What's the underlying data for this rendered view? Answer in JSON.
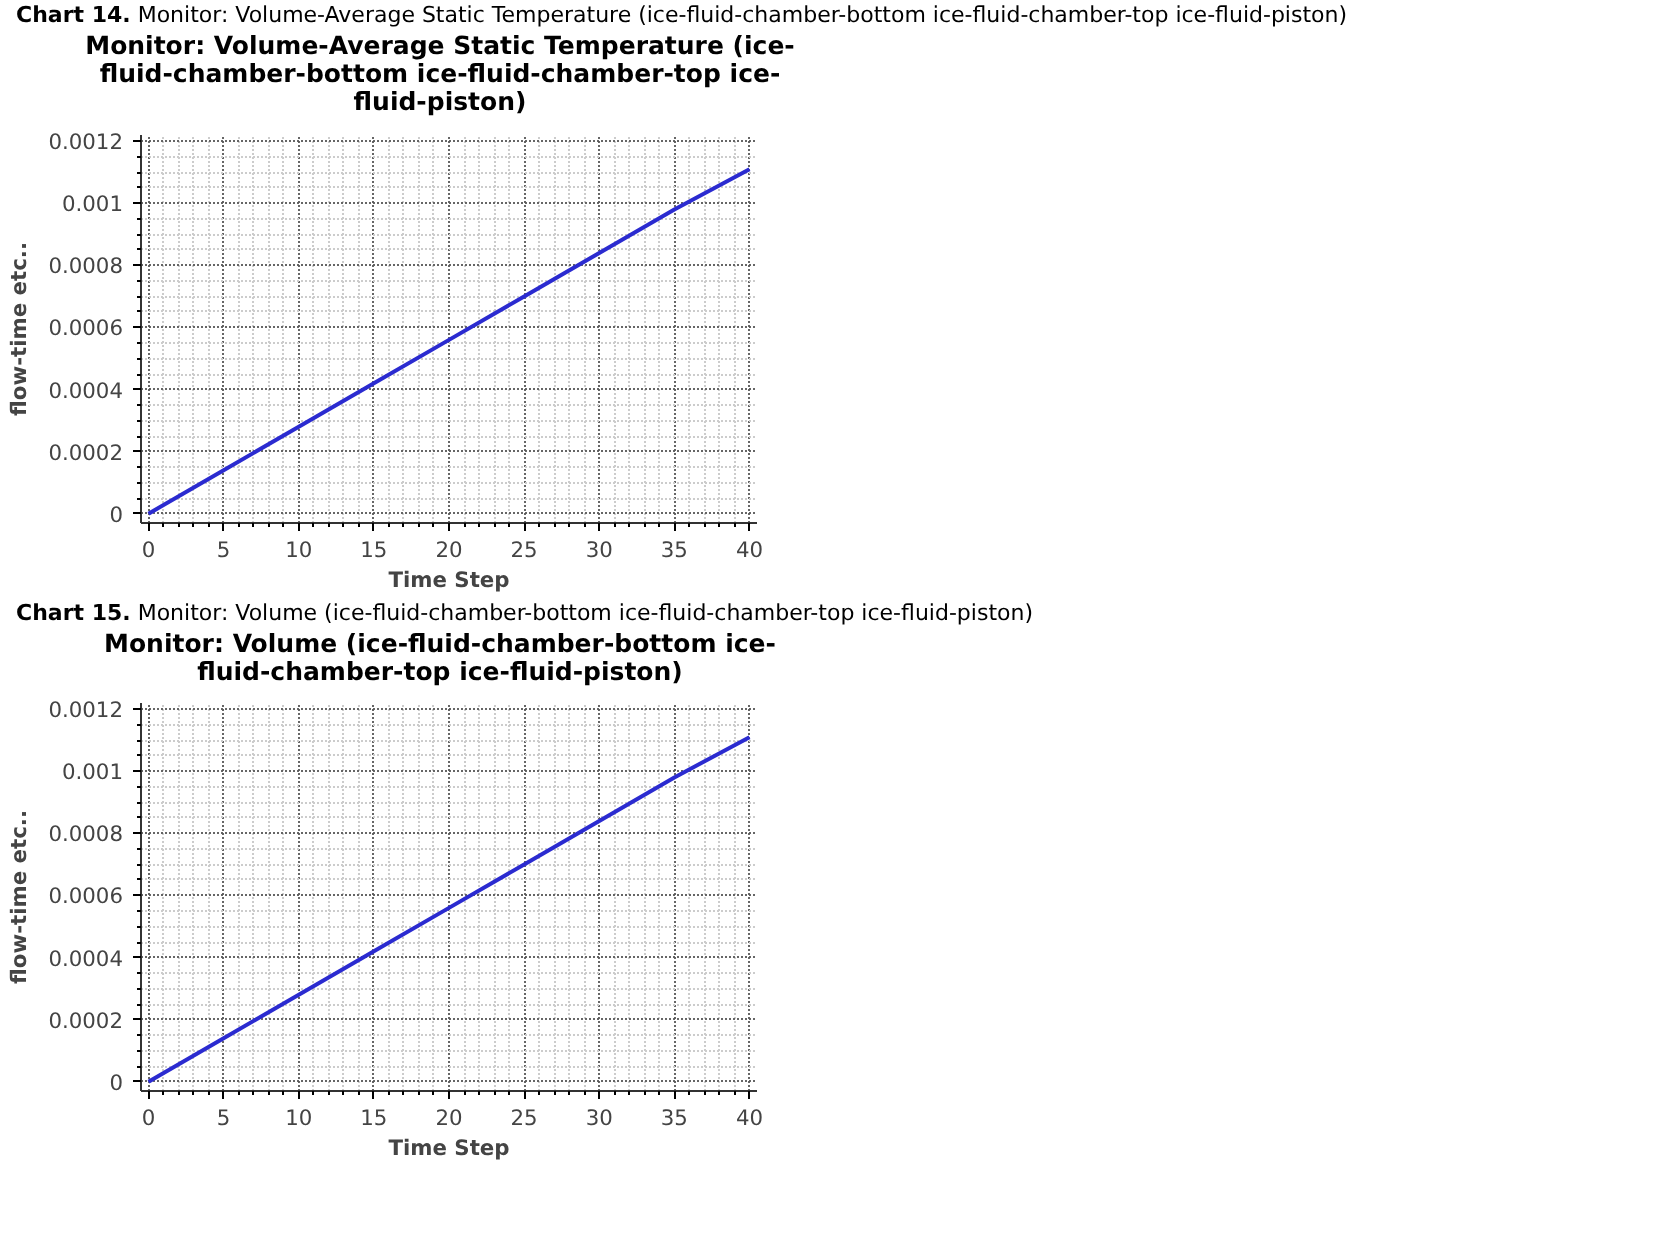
{
  "chart_data": [
    {
      "type": "line",
      "annotations": [
        "Chart 14. Monitor: Volume-Average Static Temperature (ice-fluid-chamber-bottom ice-fluid-chamber-top ice-fluid-piston)"
      ],
      "title": "Monitor: Volume-Average Static Temperature (ice-fluid-chamber-bottom ice-fluid-chamber-top ice-fluid-piston)",
      "xlabel": "Time Step",
      "ylabel": "flow-time etc..",
      "x": [
        0,
        5,
        10,
        15,
        20,
        25,
        30,
        35,
        40
      ],
      "series": [
        {
          "color": "#2b2bd0",
          "values": [
            0,
            0.00014,
            0.00028,
            0.00042,
            0.00056,
            0.0007,
            0.00084,
            0.00098,
            0.00111
          ]
        }
      ],
      "xlim": [
        -0.5,
        40.5
      ],
      "ylim": [
        -3e-05,
        0.00122
      ],
      "xticks": [
        0,
        5,
        10,
        15,
        20,
        25,
        30,
        35,
        40
      ],
      "yticks": [
        0,
        0.0002,
        0.0004,
        0.0006,
        0.0008,
        0.001,
        0.0012
      ],
      "grid": true
    },
    {
      "type": "line",
      "annotations": [
        "Chart 15. Monitor: Volume (ice-fluid-chamber-bottom ice-fluid-chamber-top ice-fluid-piston)"
      ],
      "title": "Monitor: Volume (ice-fluid-chamber-bottom ice-fluid-chamber-top ice-fluid-piston)",
      "xlabel": "Time Step",
      "ylabel": "flow-time etc..",
      "x": [
        0,
        5,
        10,
        15,
        20,
        25,
        30,
        35,
        40
      ],
      "series": [
        {
          "color": "#2b2bd0",
          "values": [
            0,
            0.00014,
            0.00028,
            0.00042,
            0.00056,
            0.0007,
            0.00084,
            0.00098,
            0.00111
          ]
        }
      ],
      "xlim": [
        -0.5,
        40.5
      ],
      "ylim": [
        -3e-05,
        0.00122
      ],
      "xticks": [
        0,
        5,
        10,
        15,
        20,
        25,
        30,
        35,
        40
      ],
      "yticks": [
        0,
        0.0002,
        0.0004,
        0.0006,
        0.0008,
        0.001,
        0.0012
      ],
      "grid": true
    }
  ]
}
